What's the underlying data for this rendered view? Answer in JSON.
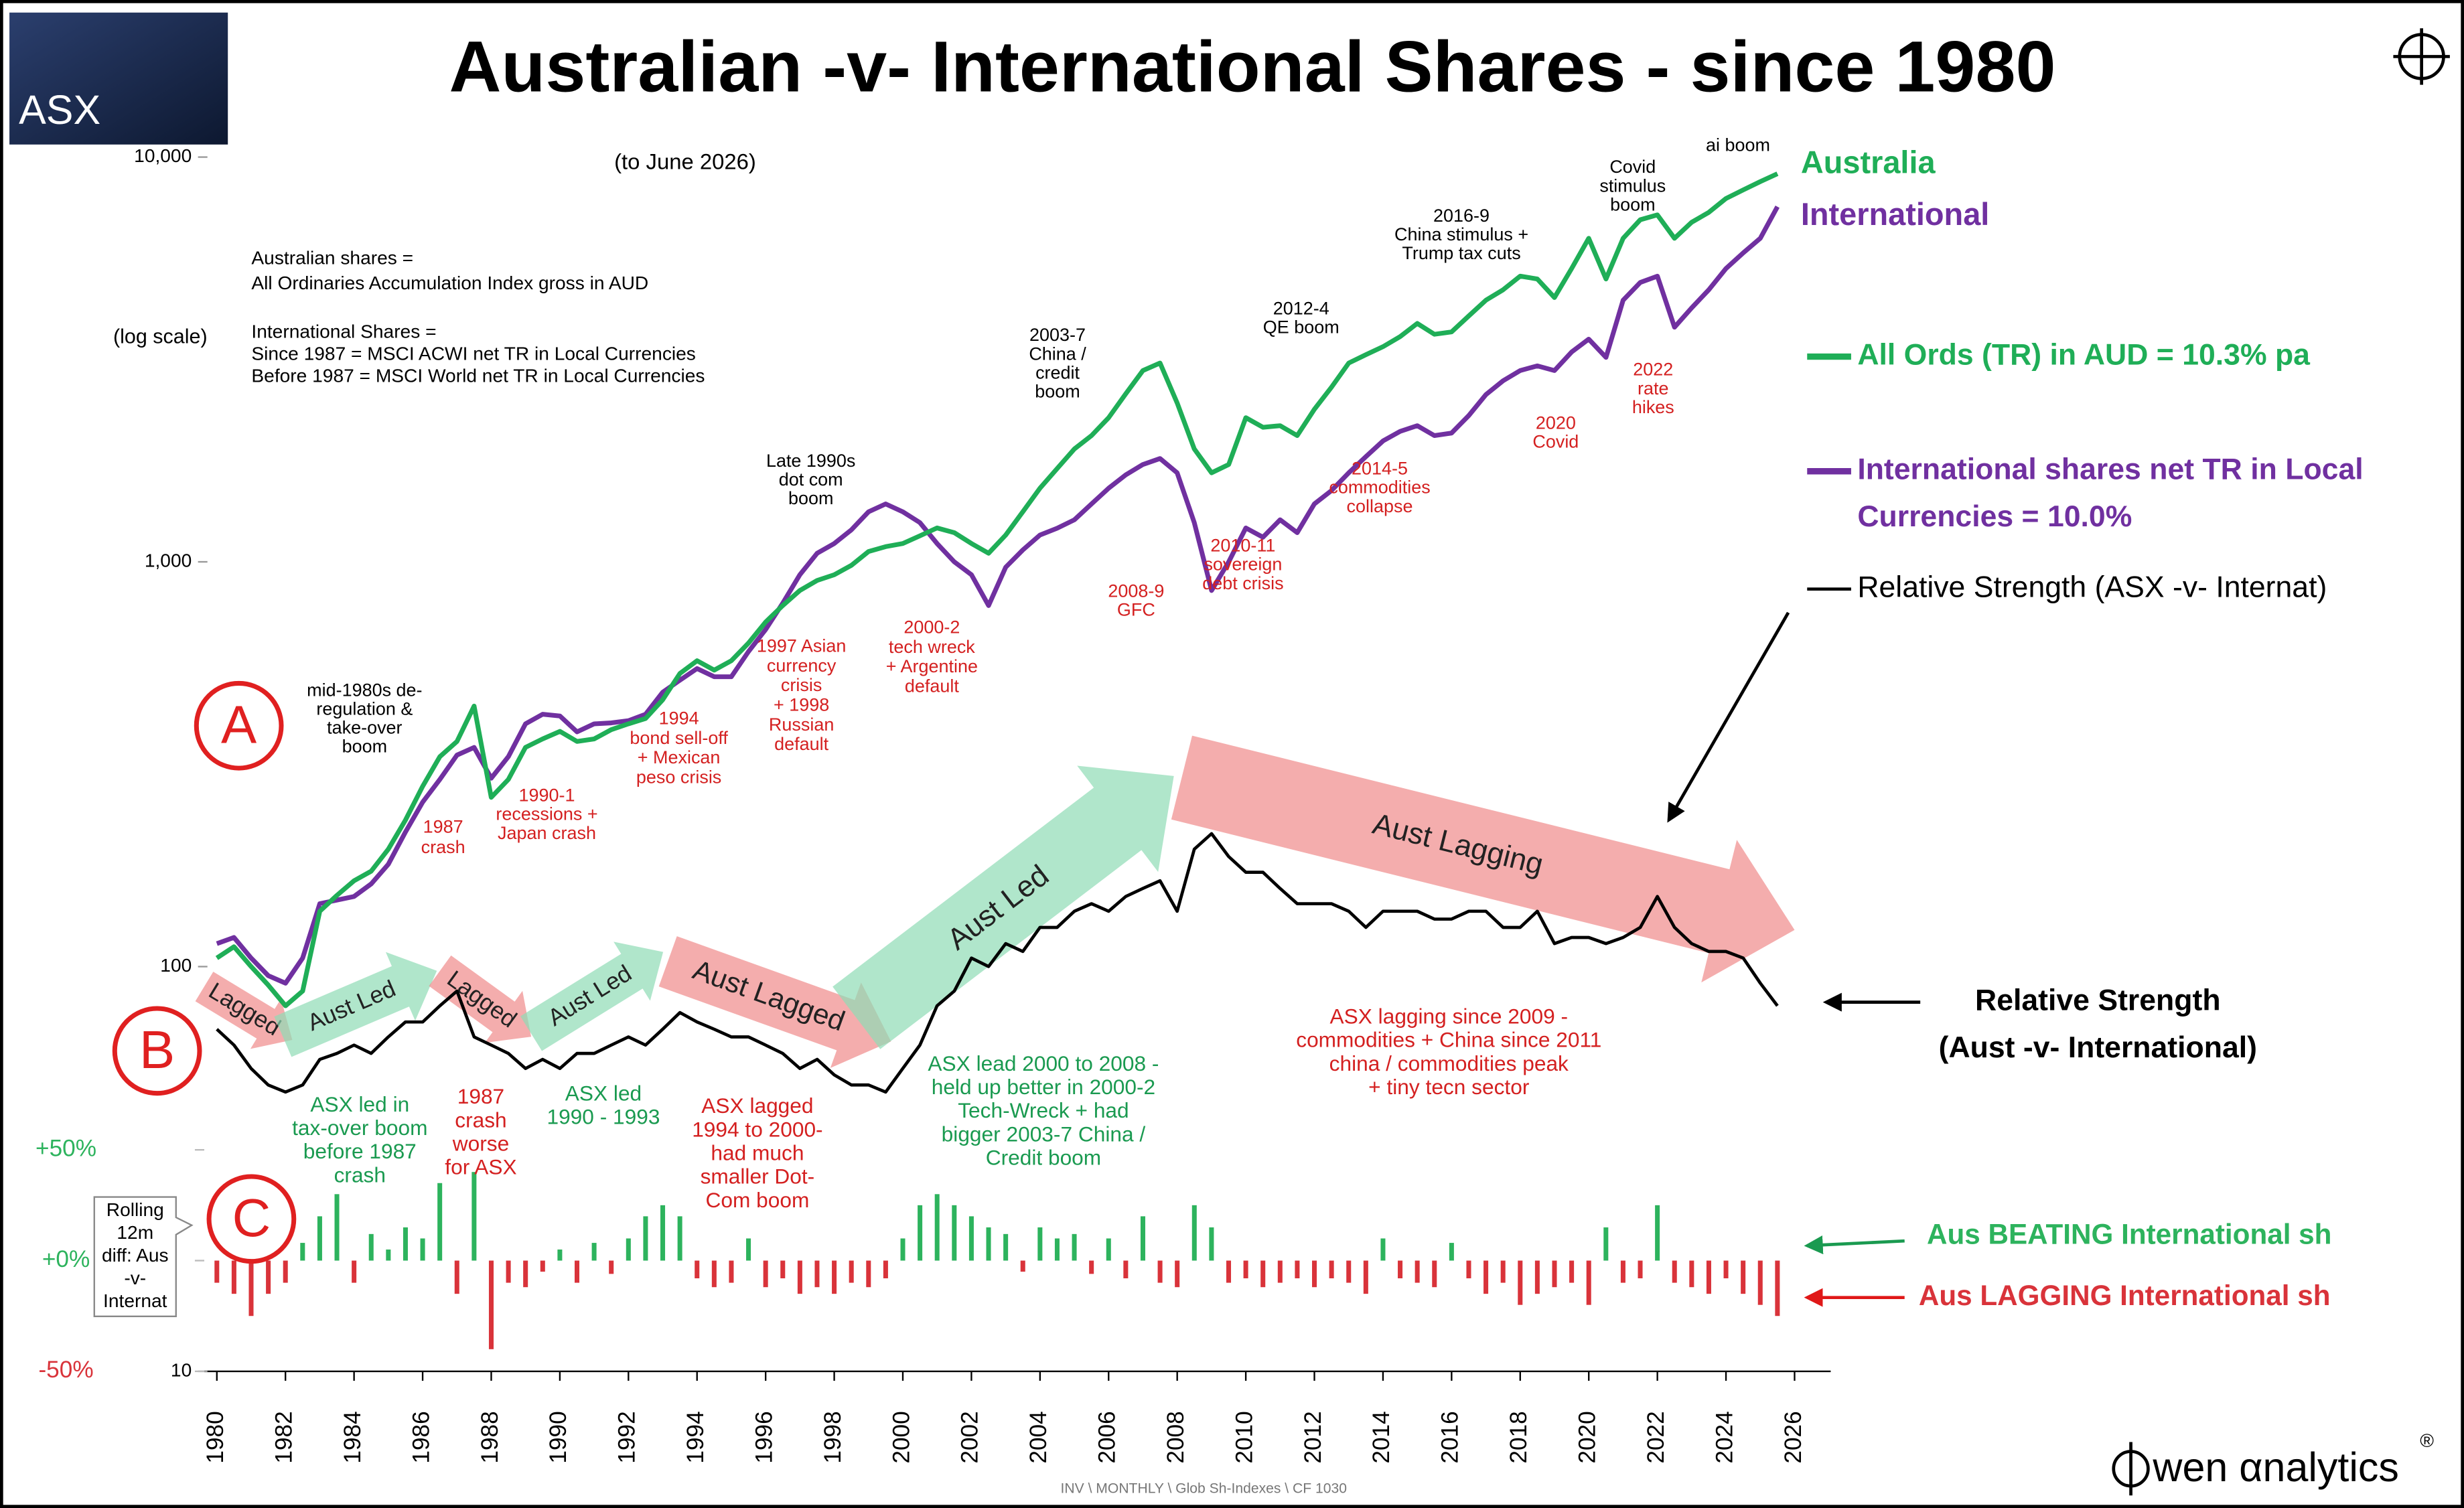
{
  "title": "Australian -v- International Shares - since 1980",
  "logo_text": "ASX",
  "brand": {
    "text": "wen αnalytics",
    "mark": "®"
  },
  "footer": "INV \\ MONTHLY \\  Glob Sh-Indexes \\  CF 1030",
  "chart_data": {
    "type": "line",
    "subtitle": "(to June 2026)",
    "y_axis_note": "(log scale)",
    "notes": [
      "Australian shares =",
      "All Ordinaries Accumulation Index gross in AUD",
      "International Shares =",
      "Since 1987 = MSCI ACWI net TR in Local Currencies",
      "Before 1987 = MSCI World net TR in Local Currencies"
    ],
    "log_scale": true,
    "grid": false,
    "xlim": [
      1980,
      2026
    ],
    "xticks": [
      1980,
      1982,
      1984,
      1986,
      1988,
      1990,
      1992,
      1994,
      1996,
      1998,
      2000,
      2002,
      2004,
      2006,
      2008,
      2010,
      2012,
      2014,
      2016,
      2018,
      2020,
      2022,
      2024,
      2026
    ],
    "ylim": [
      10,
      10000
    ],
    "yticks": [
      {
        "value": 10000,
        "label": "10,000"
      },
      {
        "value": 1000,
        "label": "1,000"
      },
      100,
      10
    ],
    "y2lim": [
      -50,
      50
    ],
    "y2ticks": [
      {
        "value": 50,
        "label": "+50%"
      },
      {
        "value": 0,
        "label": "+0%"
      },
      {
        "value": -50,
        "label": "-50%"
      }
    ],
    "x": [
      1980,
      1980.5,
      1981,
      1981.5,
      1982,
      1982.5,
      1983,
      1983.5,
      1984,
      1984.5,
      1985,
      1985.5,
      1986,
      1986.5,
      1987,
      1987.5,
      1988,
      1988.5,
      1989,
      1989.5,
      1990,
      1990.5,
      1991,
      1991.5,
      1992,
      1992.5,
      1993,
      1993.5,
      1994,
      1994.5,
      1995,
      1995.5,
      1996,
      1996.5,
      1997,
      1997.5,
      1998,
      1998.5,
      1999,
      1999.5,
      2000,
      2000.5,
      2001,
      2001.5,
      2002,
      2002.5,
      2003,
      2003.5,
      2004,
      2004.5,
      2005,
      2005.5,
      2006,
      2006.5,
      2007,
      2007.5,
      2008,
      2008.5,
      2009,
      2009.5,
      2010,
      2010.5,
      2011,
      2011.5,
      2012,
      2012.5,
      2013,
      2013.5,
      2014,
      2014.5,
      2015,
      2015.5,
      2016,
      2016.5,
      2017,
      2017.5,
      2018,
      2018.5,
      2019,
      2019.5,
      2020,
      2020.5,
      2021,
      2021.5,
      2022,
      2022.5,
      2023,
      2023.5,
      2024,
      2024.5,
      2025,
      2025.5
    ],
    "series": [
      {
        "name": "Australia",
        "color": "#1fae57",
        "legend": [
          "All Ords (TR) in AUD  =  10.3% pa"
        ],
        "values": [
          105,
          112,
          100,
          90,
          80,
          87,
          137,
          150,
          163,
          172,
          195,
          230,
          279,
          330,
          360,
          440,
          262,
          290,
          348,
          365,
          381,
          360,
          365,
          385,
          398,
          410,
          456,
          530,
          570,
          540,
          570,
          630,
          710,
          780,
          850,
          900,
          929,
          980,
          1060,
          1090,
          1110,
          1160,
          1213,
          1180,
          1110,
          1050,
          1165,
          1330,
          1520,
          1700,
          1900,
          2050,
          2270,
          2600,
          2970,
          3100,
          2470,
          1900,
          1660,
          1740,
          2270,
          2150,
          2170,
          2050,
          2380,
          2700,
          3100,
          3250,
          3400,
          3600,
          3880,
          3650,
          3700,
          4050,
          4430,
          4700,
          5080,
          5000,
          4500,
          5300,
          6300,
          5000,
          6300,
          7000,
          7200,
          6300,
          6900,
          7300,
          7900,
          8300,
          8700,
          9100
        ]
      },
      {
        "name": "International",
        "color": "#7030a0",
        "legend": [
          "International shares net TR in Local",
          "Currencies  =  10.0%"
        ],
        "values": [
          114,
          118,
          105,
          95,
          91,
          105,
          143,
          146,
          149,
          160,
          179,
          215,
          255,
          290,
          333,
          348,
          292,
          330,
          398,
          420,
          416,
          380,
          398,
          400,
          405,
          420,
          476,
          510,
          545,
          520,
          520,
          600,
          680,
          790,
          929,
          1050,
          1110,
          1200,
          1330,
          1390,
          1330,
          1250,
          1110,
          1000,
          929,
          780,
          970,
          1070,
          1165,
          1210,
          1270,
          1390,
          1520,
          1640,
          1740,
          1800,
          1660,
          1250,
          850,
          1000,
          1213,
          1150,
          1270,
          1180,
          1390,
          1500,
          1660,
          1820,
          1990,
          2100,
          2170,
          2050,
          2080,
          2300,
          2590,
          2800,
          2970,
          3050,
          2970,
          3300,
          3550,
          3200,
          4430,
          4900,
          5080,
          3800,
          4240,
          4700,
          5300,
          5800,
          6300,
          7540
        ]
      },
      {
        "name": "Relative Strength (ASX -v- Internat)",
        "color": "#000000",
        "end_label": [
          "Relative Strength",
          "(Aust -v- International)"
        ],
        "values": [
          70,
          64,
          56,
          51,
          49,
          51,
          59,
          61,
          64,
          61,
          67,
          73,
          73,
          80,
          87,
          67,
          64,
          61,
          56,
          59,
          56,
          61,
          61,
          64,
          67,
          64,
          70,
          77,
          73,
          70,
          67,
          67,
          64,
          61,
          56,
          59,
          54,
          51,
          51,
          49,
          56,
          64,
          80,
          87,
          105,
          100,
          114,
          109,
          125,
          125,
          137,
          143,
          137,
          149,
          156,
          163,
          137,
          195,
          213,
          187,
          171,
          171,
          156,
          143,
          143,
          143,
          137,
          125,
          137,
          137,
          137,
          131,
          131,
          137,
          137,
          125,
          125,
          137,
          114,
          118,
          118,
          114,
          118,
          125,
          149,
          125,
          114,
          109,
          109,
          105,
          91,
          80
        ]
      },
      {
        "type": "bar",
        "axis": "y2",
        "positive_color": "#2db35d",
        "negative_color": "#d9333a",
        "label_lines": [
          "Rolling",
          "12m",
          "diff: Aus",
          "-v-",
          "Internat"
        ],
        "positive_label": "Aus BEATING International sh",
        "negative_label": "Aus LAGGING International sh",
        "values": [
          -10,
          -15,
          -25,
          -15,
          -10,
          8,
          20,
          30,
          -10,
          12,
          5,
          15,
          10,
          35,
          -15,
          40,
          -40,
          -10,
          -12,
          -5,
          5,
          -10,
          8,
          -6,
          10,
          20,
          25,
          20,
          -8,
          -12,
          -10,
          10,
          -12,
          -8,
          -15,
          -12,
          -15,
          -10,
          -12,
          -8,
          10,
          25,
          30,
          25,
          20,
          15,
          12,
          -5,
          15,
          10,
          12,
          -6,
          10,
          -8,
          20,
          -10,
          -12,
          25,
          15,
          -10,
          -8,
          -12,
          -10,
          -8,
          -12,
          -8,
          -10,
          -15,
          10,
          -8,
          -10,
          -12,
          8,
          -8,
          -15,
          -10,
          -20,
          -15,
          -12,
          -10,
          -20,
          15,
          -10,
          -8,
          25,
          -10,
          -12,
          -15,
          -8,
          -15,
          -20,
          -25
        ]
      }
    ],
    "markers": [
      "A",
      "B",
      "C"
    ],
    "marker_color": "#e02020",
    "phases": [
      {
        "label": "Lagged",
        "color": "#f08a8a"
      },
      {
        "label": "Aust Led",
        "color": "#8fdcb5"
      },
      {
        "label": "Lagged",
        "color": "#f08a8a"
      },
      {
        "label": "Aust Led",
        "color": "#8fdcb5"
      },
      {
        "label": "Aust Lagged",
        "color": "#f08a8a"
      },
      {
        "label": "Aust Led",
        "color": "#8fdcb5"
      },
      {
        "label": "Aust Lagging",
        "color": "#f08a8a"
      }
    ],
    "annotations": [
      {
        "lines": [
          "mid-1980s de-",
          "regulation &",
          "take-over",
          "boom"
        ],
        "color": "#000000"
      },
      {
        "lines": [
          "Late 1990s",
          "dot com",
          "boom"
        ],
        "color": "#000000"
      },
      {
        "lines": [
          "2003-7",
          "China /",
          "credit",
          "boom"
        ],
        "color": "#000000"
      },
      {
        "lines": [
          "2012-4",
          "QE boom"
        ],
        "color": "#000000"
      },
      {
        "lines": [
          "2016-9",
          "China stimulus +",
          "Trump tax cuts"
        ],
        "color": "#000000"
      },
      {
        "lines": [
          "Covid",
          "stimulus",
          "boom"
        ],
        "color": "#000000"
      },
      {
        "lines": [
          "ai boom"
        ],
        "color": "#000000"
      },
      {
        "lines": [
          "1987",
          "crash"
        ],
        "color": "#d42020"
      },
      {
        "lines": [
          "1990-1",
          "recessions +",
          "Japan crash"
        ],
        "color": "#d42020"
      },
      {
        "lines": [
          "1994",
          "bond sell-off",
          "+ Mexican",
          "peso crisis"
        ],
        "color": "#d42020"
      },
      {
        "lines": [
          "1997 Asian",
          "currency",
          "crisis",
          "+ 1998",
          "Russian",
          "default"
        ],
        "color": "#d42020"
      },
      {
        "lines": [
          "2000-2",
          "tech wreck",
          "+ Argentine",
          "default"
        ],
        "color": "#d42020"
      },
      {
        "lines": [
          "2008-9",
          "GFC"
        ],
        "color": "#d42020"
      },
      {
        "lines": [
          "2010-11",
          "sovereign",
          "debt crisis"
        ],
        "color": "#d42020"
      },
      {
        "lines": [
          "2014-5",
          "commodities",
          "collapse"
        ],
        "color": "#d42020"
      },
      {
        "lines": [
          "2020",
          "Covid"
        ],
        "color": "#d42020"
      },
      {
        "lines": [
          "2022",
          "rate",
          "hikes"
        ],
        "color": "#d42020"
      },
      {
        "lines": [
          "ASX led in",
          "tax-over boom",
          "before 1987",
          "crash"
        ],
        "color": "#1a9a50"
      },
      {
        "lines": [
          "ASX led",
          "1990 - 1993"
        ],
        "color": "#1a9a50"
      },
      {
        "lines": [
          "ASX lead 2000 to 2008 -",
          "held up better in 2000-2",
          "Tech-Wreck + had",
          "bigger 2003-7 China /",
          "Credit boom"
        ],
        "color": "#1a9a50"
      },
      {
        "lines": [
          "1987",
          "crash",
          "worse",
          "for ASX"
        ],
        "color": "#d42020"
      },
      {
        "lines": [
          "ASX lagged",
          "1994 to 2000-",
          "had much",
          "smaller Dot-",
          "Com boom"
        ],
        "color": "#d42020"
      },
      {
        "lines": [
          "ASX lagging since 2009 -",
          "commodities + China since 2011",
          "china / commodities peak",
          "+ tiny tecn sector"
        ],
        "color": "#d42020"
      }
    ]
  }
}
